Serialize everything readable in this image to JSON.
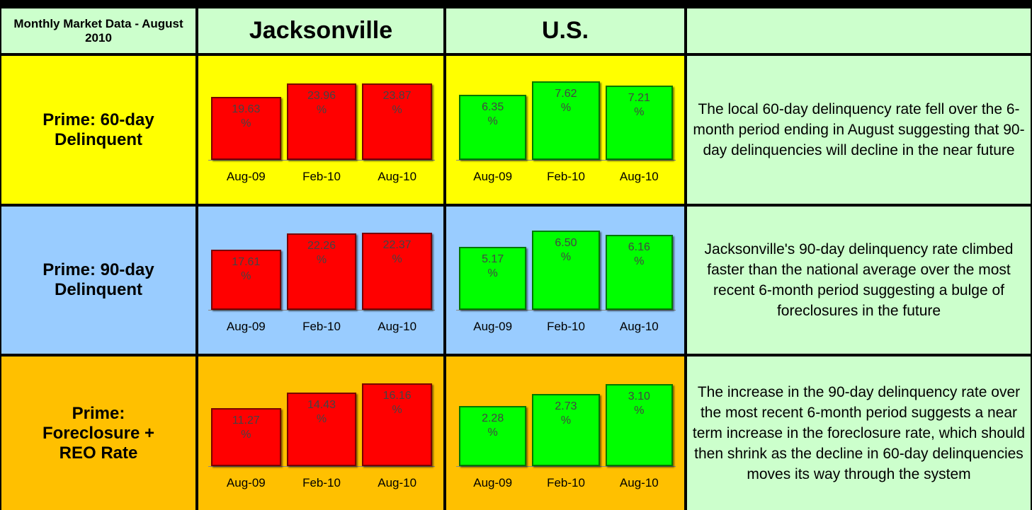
{
  "header": {
    "corner": "Monthly Market Data - August 2010",
    "columns": [
      "Jacksonville",
      "U.S."
    ]
  },
  "rows": [
    {
      "label": "Prime: 60-day Delinquent",
      "comment": "The local 60-day delinquency rate fell over the 6-month period ending in August suggesting that 90-day delinquencies will decline in the near future"
    },
    {
      "label": "Prime: 90-day Delinquent",
      "comment": "Jacksonville's 90-day delinquency rate climbed faster than the national average over the most recent 6-month period suggesting a bulge of foreclosures in the future"
    },
    {
      "label": "Prime: Foreclosure + REO Rate",
      "comment": "The increase in the 90-day delinquency rate over the most recent 6-month period suggests a near term increase in the foreclosure rate, which should then shrink as the decline in 60-day delinquencies moves its way through the system"
    }
  ],
  "chart_data": [
    {
      "type": "bar",
      "categories": [
        "Aug-09",
        "Feb-10",
        "Aug-10"
      ],
      "values": [
        19.63,
        23.96,
        23.87
      ],
      "value_labels": [
        "19.63 %",
        "23.96 %",
        "23.87 %"
      ],
      "color": "#ff0000",
      "ylim": [
        0,
        25.5
      ]
    },
    {
      "type": "bar",
      "categories": [
        "Aug-09",
        "Feb-10",
        "Aug-10"
      ],
      "values": [
        6.35,
        7.62,
        7.21
      ],
      "value_labels": [
        "6.35 %",
        "7.62 %",
        "7.21 %"
      ],
      "color": "#00ff00",
      "ylim": [
        0,
        7.9
      ]
    },
    {
      "type": "bar",
      "categories": [
        "Aug-09",
        "Feb-10",
        "Aug-10"
      ],
      "values": [
        17.61,
        22.26,
        22.37
      ],
      "value_labels": [
        "17.61 %",
        "22.26 %",
        "22.37 %"
      ],
      "color": "#ff0000",
      "ylim": [
        0,
        23.5
      ]
    },
    {
      "type": "bar",
      "categories": [
        "Aug-09",
        "Feb-10",
        "Aug-10"
      ],
      "values": [
        5.17,
        6.5,
        6.16
      ],
      "value_labels": [
        "5.17 %",
        "6.50 %",
        "6.16 %"
      ],
      "color": "#00ff00",
      "ylim": [
        0,
        6.6
      ]
    },
    {
      "type": "bar",
      "categories": [
        "Aug-09",
        "Feb-10",
        "Aug-10"
      ],
      "values": [
        11.27,
        14.43,
        16.16
      ],
      "value_labels": [
        "11.27 %",
        "14.43 %",
        "16.16 %"
      ],
      "color": "#ff0000",
      "ylim": [
        0,
        17
      ]
    },
    {
      "type": "bar",
      "categories": [
        "Aug-09",
        "Feb-10",
        "Aug-10"
      ],
      "values": [
        2.28,
        2.73,
        3.1
      ],
      "value_labels": [
        "2.28 %",
        "2.73 %",
        "3.10 %"
      ],
      "color": "#00ff00",
      "ylim": [
        0,
        3.3
      ]
    }
  ]
}
